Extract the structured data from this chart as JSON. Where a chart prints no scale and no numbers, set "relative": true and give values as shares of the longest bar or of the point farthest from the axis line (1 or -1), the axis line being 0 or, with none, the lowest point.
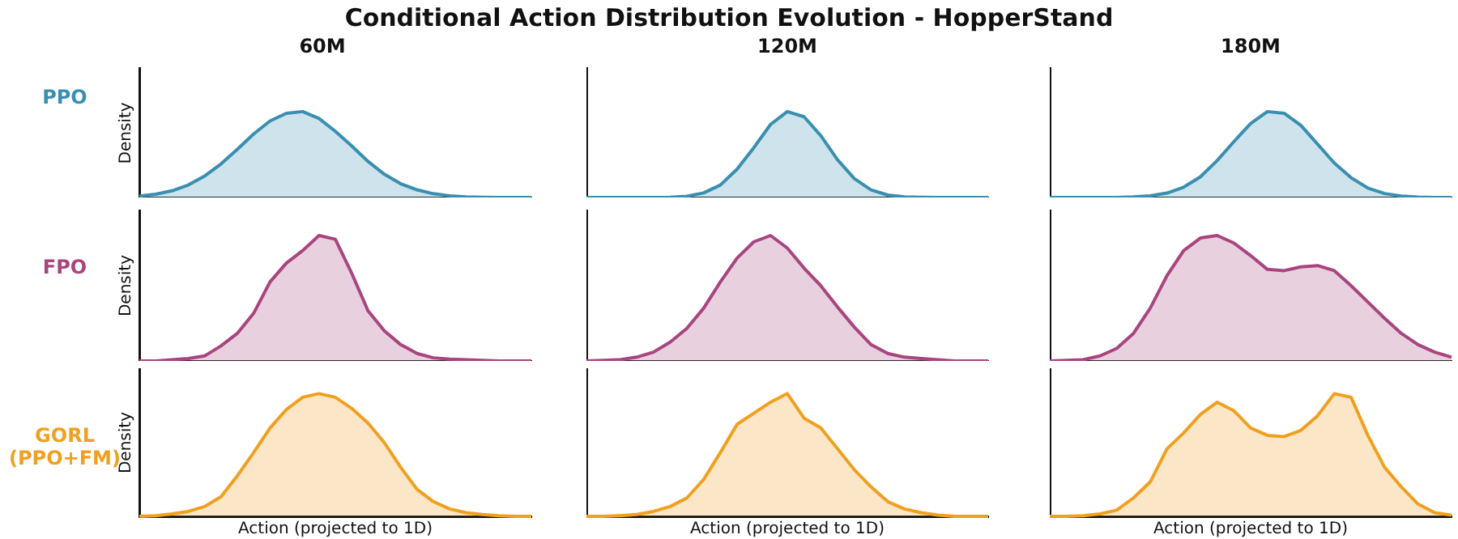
{
  "chart_data": [
    {
      "type": "area",
      "title": "Conditional Action Distribution Evolution - HopperStand",
      "subtitle": "60M",
      "ylabel": "Density",
      "annotations": [
        "PPO"
      ],
      "relative": true,
      "tick_labels": false,
      "categories": [
        null,
        null,
        null,
        null,
        null,
        null,
        null,
        null,
        null,
        null,
        null,
        null,
        null,
        null,
        null,
        null,
        null,
        null,
        null,
        null,
        null,
        null,
        null,
        null,
        null
      ],
      "series": [
        {
          "color": "#3a8fb0",
          "values": [
            0.017,
            0.038,
            0.077,
            0.145,
            0.25,
            0.39,
            0.56,
            0.74,
            0.89,
            0.98,
            1.0,
            0.92,
            0.77,
            0.6,
            0.42,
            0.27,
            0.16,
            0.089,
            0.044,
            0.02,
            0.008,
            0.003,
            0.001,
            0,
            0
          ]
        }
      ]
    },
    {
      "type": "area",
      "subtitle": "120M",
      "relative": true,
      "tick_labels": false,
      "categories": [
        null,
        null,
        null,
        null,
        null,
        null,
        null,
        null,
        null,
        null,
        null,
        null,
        null,
        null,
        null,
        null,
        null,
        null,
        null,
        null,
        null,
        null,
        null,
        null,
        null
      ],
      "series": [
        {
          "color": "#3a8fb0",
          "values": [
            0,
            0,
            0,
            0,
            0.001,
            0.003,
            0.015,
            0.053,
            0.145,
            0.33,
            0.58,
            0.85,
            1.0,
            0.94,
            0.72,
            0.44,
            0.22,
            0.089,
            0.028,
            0.008,
            0.002,
            0,
            0,
            0,
            0
          ]
        }
      ]
    },
    {
      "type": "area",
      "subtitle": "180M",
      "relative": true,
      "tick_labels": false,
      "categories": [
        null,
        null,
        null,
        null,
        null,
        null,
        null,
        null,
        null,
        null,
        null,
        null,
        null,
        null,
        null,
        null,
        null,
        null,
        null,
        null,
        null,
        null,
        null,
        null,
        null
      ],
      "series": [
        {
          "color": "#3a8fb0",
          "values": [
            0,
            0,
            0,
            0,
            0.001,
            0.006,
            0.019,
            0.051,
            0.12,
            0.24,
            0.43,
            0.65,
            0.86,
            1.0,
            0.98,
            0.84,
            0.62,
            0.4,
            0.23,
            0.11,
            0.046,
            0.017,
            0.005,
            0.001,
            0
          ]
        }
      ]
    },
    {
      "type": "area",
      "ylabel": "Density",
      "annotations": [
        "FPO"
      ],
      "relative": true,
      "tick_labels": false,
      "categories": [
        null,
        null,
        null,
        null,
        null,
        null,
        null,
        null,
        null,
        null,
        null,
        null,
        null,
        null,
        null,
        null,
        null,
        null,
        null,
        null,
        null,
        null,
        null,
        null,
        null
      ],
      "series": [
        {
          "color": "#a8457f",
          "values": [
            0,
            0,
            0.01,
            0.02,
            0.04,
            0.12,
            0.22,
            0.38,
            0.63,
            0.78,
            0.88,
            1.0,
            0.97,
            0.7,
            0.4,
            0.24,
            0.13,
            0.06,
            0.025,
            0.015,
            0.01,
            0.005,
            0,
            0,
            0
          ]
        }
      ]
    },
    {
      "type": "area",
      "relative": true,
      "tick_labels": false,
      "categories": [
        null,
        null,
        null,
        null,
        null,
        null,
        null,
        null,
        null,
        null,
        null,
        null,
        null,
        null,
        null,
        null,
        null,
        null,
        null,
        null,
        null,
        null,
        null,
        null,
        null
      ],
      "series": [
        {
          "color": "#a8457f",
          "values": [
            0,
            0.005,
            0.01,
            0.03,
            0.07,
            0.15,
            0.26,
            0.42,
            0.63,
            0.82,
            0.95,
            1.0,
            0.9,
            0.74,
            0.6,
            0.43,
            0.27,
            0.13,
            0.06,
            0.03,
            0.02,
            0.01,
            0,
            0,
            0
          ]
        }
      ]
    },
    {
      "type": "area",
      "relative": true,
      "tick_labels": false,
      "categories": [
        null,
        null,
        null,
        null,
        null,
        null,
        null,
        null,
        null,
        null,
        null,
        null,
        null,
        null,
        null,
        null,
        null,
        null,
        null,
        null,
        null,
        null,
        null,
        null,
        null
      ],
      "series": [
        {
          "color": "#a8457f",
          "values": [
            0,
            0.005,
            0.01,
            0.04,
            0.1,
            0.22,
            0.42,
            0.68,
            0.88,
            0.98,
            1.0,
            0.94,
            0.84,
            0.73,
            0.72,
            0.75,
            0.76,
            0.72,
            0.6,
            0.47,
            0.34,
            0.22,
            0.13,
            0.07,
            0.03
          ]
        }
      ]
    },
    {
      "type": "area",
      "ylabel": "Density",
      "xlabel": "Action (projected to 1D)",
      "annotations": [
        "GORL (PPO+FM)"
      ],
      "relative": true,
      "tick_labels": false,
      "categories": [
        null,
        null,
        null,
        null,
        null,
        null,
        null,
        null,
        null,
        null,
        null,
        null,
        null,
        null,
        null,
        null,
        null,
        null,
        null,
        null,
        null,
        null,
        null,
        null,
        null
      ],
      "series": [
        {
          "color": "#f0a020",
          "values": [
            0,
            0.005,
            0.02,
            0.04,
            0.08,
            0.16,
            0.33,
            0.52,
            0.72,
            0.87,
            0.97,
            1.0,
            0.97,
            0.88,
            0.76,
            0.6,
            0.4,
            0.22,
            0.12,
            0.06,
            0.03,
            0.015,
            0.005,
            0,
            0
          ]
        }
      ]
    },
    {
      "type": "area",
      "xlabel": "Action (projected to 1D)",
      "relative": true,
      "tick_labels": false,
      "categories": [
        null,
        null,
        null,
        null,
        null,
        null,
        null,
        null,
        null,
        null,
        null,
        null,
        null,
        null,
        null,
        null,
        null,
        null,
        null,
        null,
        null,
        null,
        null,
        null,
        null
      ],
      "series": [
        {
          "color": "#f0a020",
          "values": [
            0,
            0,
            0.005,
            0.015,
            0.04,
            0.08,
            0.15,
            0.3,
            0.52,
            0.75,
            0.84,
            0.93,
            1.0,
            0.8,
            0.72,
            0.55,
            0.38,
            0.24,
            0.12,
            0.06,
            0.03,
            0.01,
            0,
            0,
            0
          ]
        }
      ]
    },
    {
      "type": "area",
      "xlabel": "Action (projected to 1D)",
      "relative": true,
      "tick_labels": false,
      "categories": [
        null,
        null,
        null,
        null,
        null,
        null,
        null,
        null,
        null,
        null,
        null,
        null,
        null,
        null,
        null,
        null,
        null,
        null,
        null,
        null,
        null,
        null,
        null,
        null,
        null
      ],
      "series": [
        {
          "color": "#f0a020",
          "values": [
            0,
            0,
            0.005,
            0.02,
            0.05,
            0.15,
            0.28,
            0.55,
            0.68,
            0.83,
            0.93,
            0.86,
            0.72,
            0.66,
            0.65,
            0.7,
            0.82,
            1.0,
            0.97,
            0.66,
            0.4,
            0.24,
            0.1,
            0.03,
            0.01
          ]
        }
      ]
    }
  ]
}
